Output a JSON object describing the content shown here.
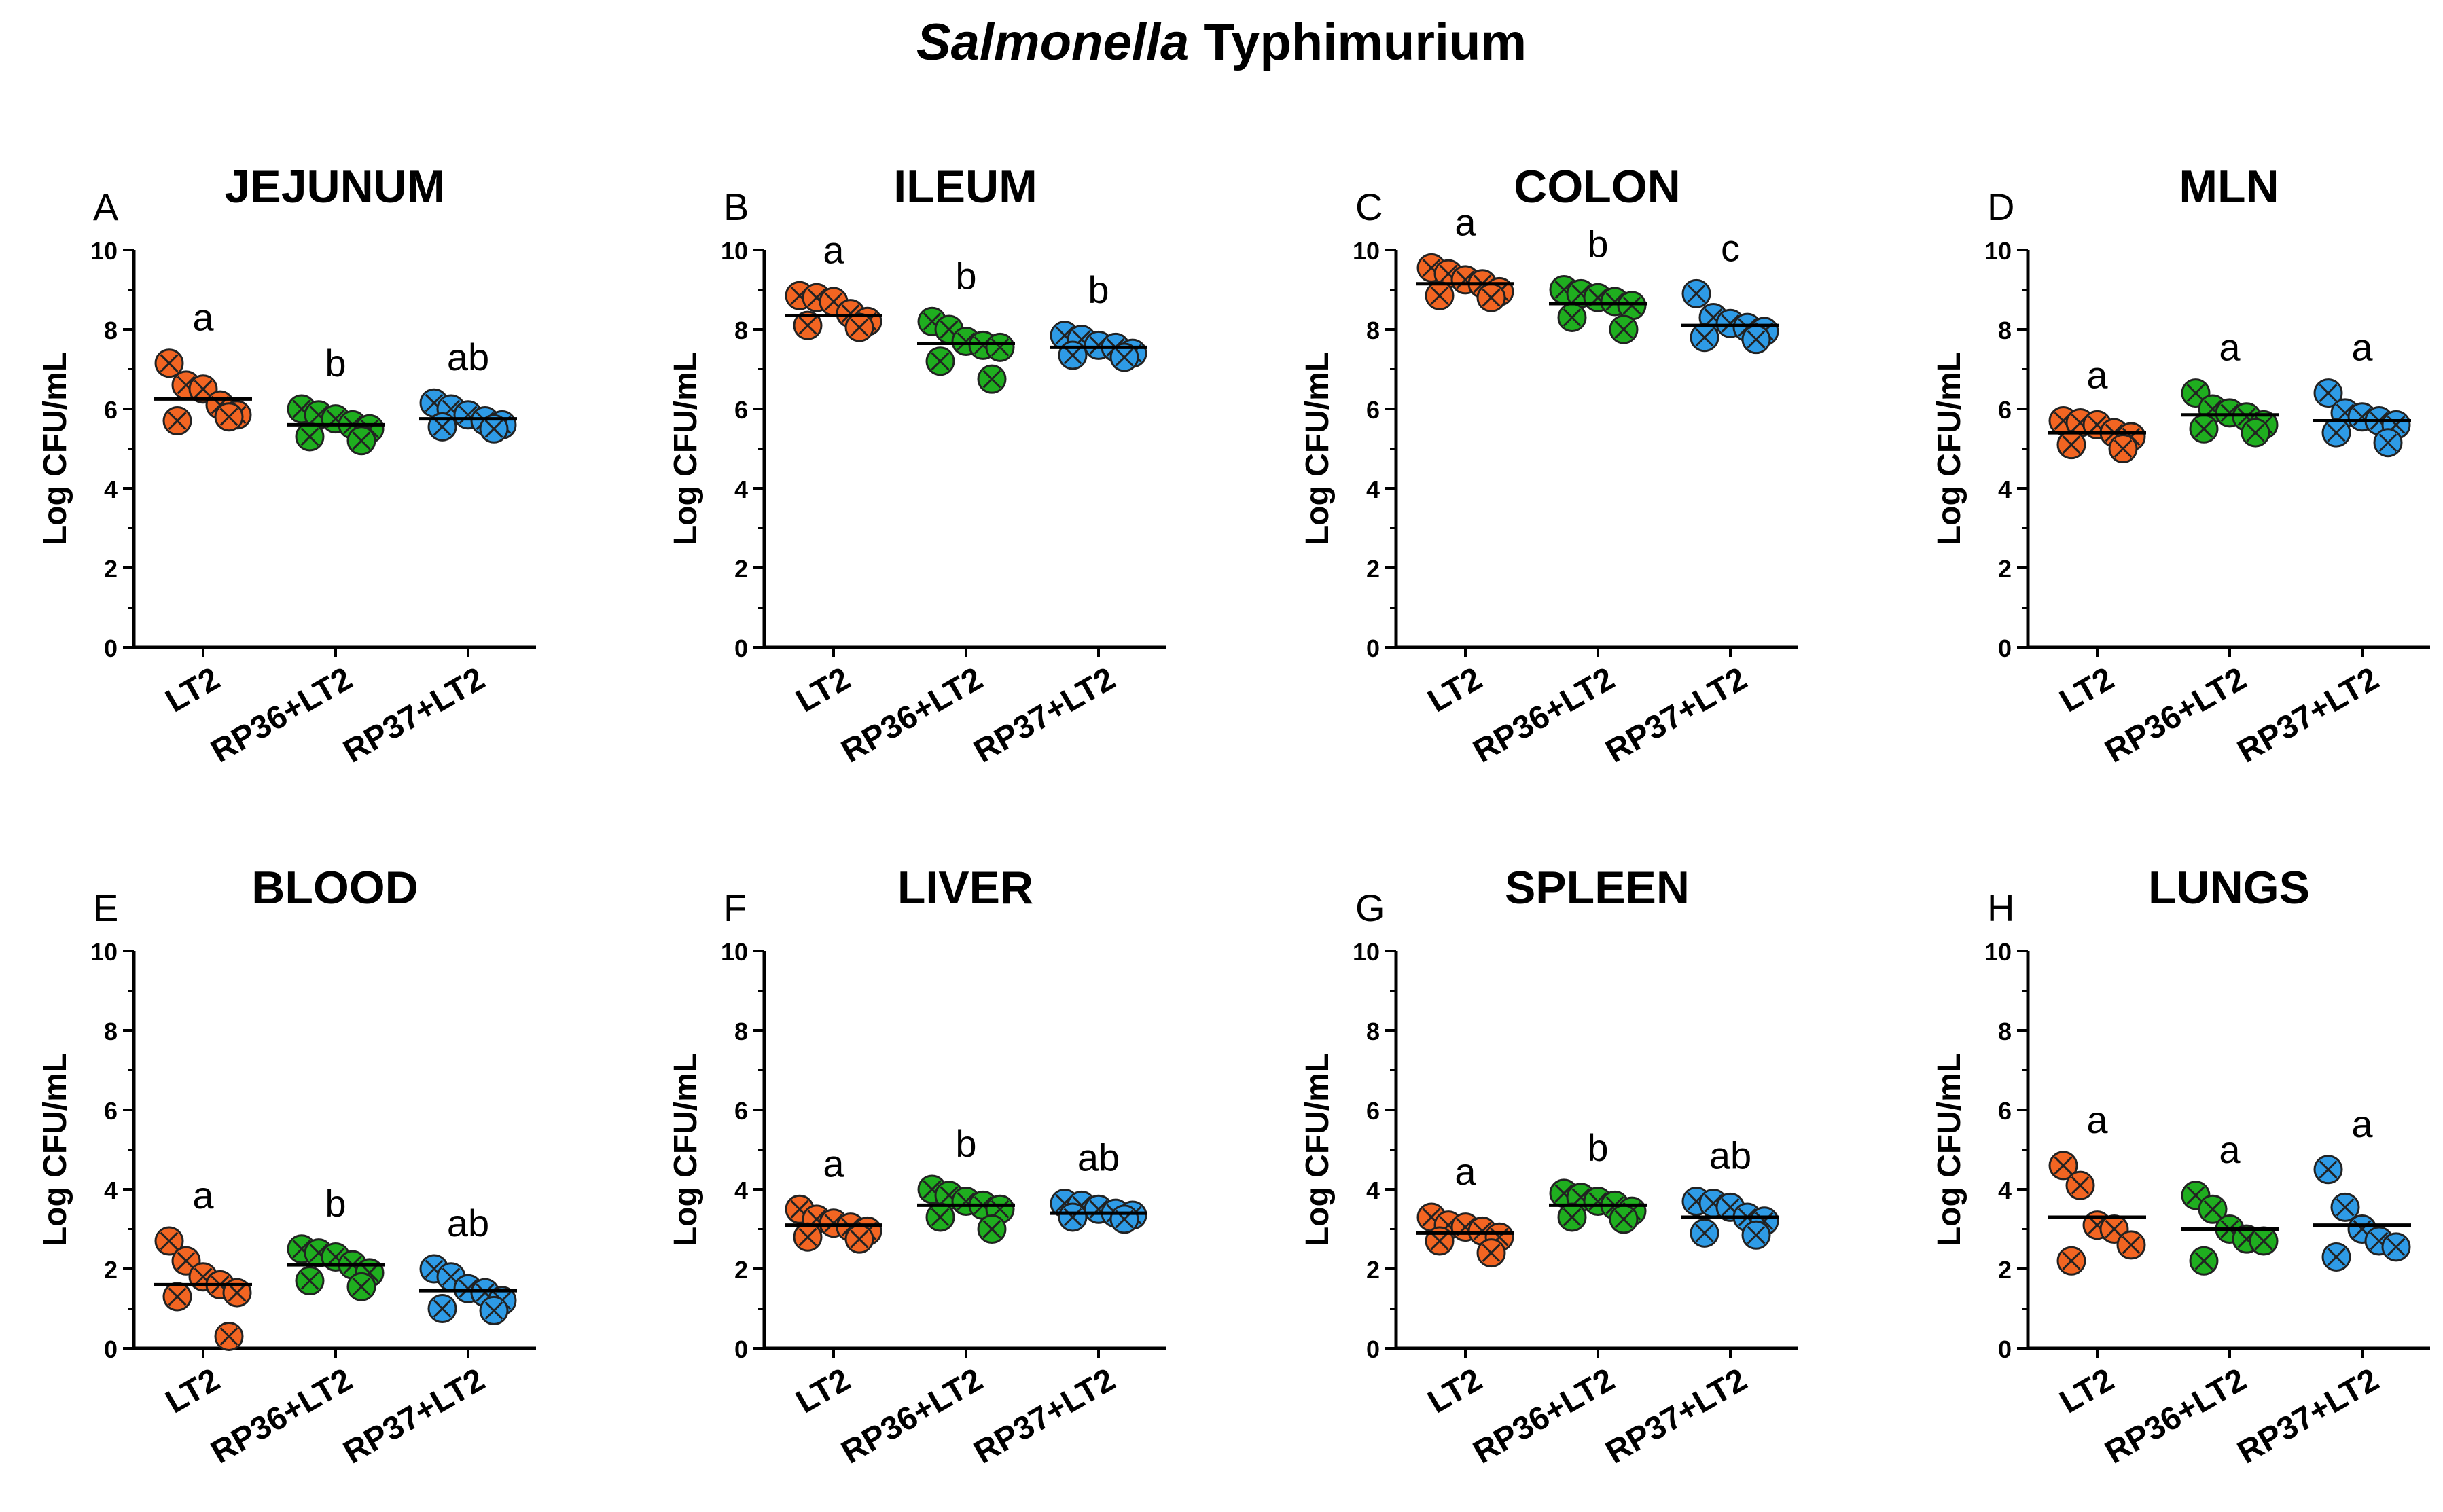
{
  "figure": {
    "title_italic": "Salmonella",
    "title_rest": " Typhimurium"
  },
  "colors": {
    "LT2": "#F26522",
    "RP36+LT2": "#1FAE1F",
    "RP37+LT2": "#2E9BE6",
    "axis": "#000000"
  },
  "chart_data": [
    {
      "type": "scatter",
      "panel": "A",
      "title": "JEJUNUM",
      "ylabel": "Log CFU/mL",
      "ylim": [
        0,
        10
      ],
      "yticks": [
        "0",
        "2",
        "4",
        "6",
        "8",
        "10"
      ],
      "categories": [
        "LT2",
        "RP36+LT2",
        "RP37+LT2"
      ],
      "groups": [
        {
          "name": "LT2",
          "values": [
            7.15,
            6.6,
            6.5,
            6.1,
            5.85,
            5.7,
            5.8
          ],
          "mean": 6.25,
          "letter": "a"
        },
        {
          "name": "RP36+LT2",
          "values": [
            6.0,
            5.85,
            5.75,
            5.6,
            5.5,
            5.3,
            5.2
          ],
          "mean": 5.6,
          "letter": "b"
        },
        {
          "name": "RP37+LT2",
          "values": [
            6.15,
            6.0,
            5.85,
            5.7,
            5.6,
            5.55,
            5.5
          ],
          "mean": 5.75,
          "letter": "ab"
        }
      ]
    },
    {
      "type": "scatter",
      "panel": "B",
      "title": "ILEUM",
      "ylabel": "Log CFU/mL",
      "ylim": [
        0,
        10
      ],
      "yticks": [
        "0",
        "2",
        "4",
        "6",
        "8",
        "10"
      ],
      "categories": [
        "LT2",
        "RP36+LT2",
        "RP37+LT2"
      ],
      "groups": [
        {
          "name": "LT2",
          "values": [
            8.85,
            8.8,
            8.7,
            8.4,
            8.2,
            8.1,
            8.05
          ],
          "mean": 8.35,
          "letter": "a"
        },
        {
          "name": "RP36+LT2",
          "values": [
            8.2,
            8.0,
            7.7,
            7.6,
            7.55,
            7.2,
            6.75
          ],
          "mean": 7.65,
          "letter": "b"
        },
        {
          "name": "RP37+LT2",
          "values": [
            7.85,
            7.75,
            7.6,
            7.55,
            7.4,
            7.35,
            7.3
          ],
          "mean": 7.55,
          "letter": "b"
        }
      ]
    },
    {
      "type": "scatter",
      "panel": "C",
      "title": "COLON",
      "ylabel": "Log CFU/mL",
      "ylim": [
        0,
        10
      ],
      "yticks": [
        "0",
        "2",
        "4",
        "6",
        "8",
        "10"
      ],
      "categories": [
        "LT2",
        "RP36+LT2",
        "RP37+LT2"
      ],
      "groups": [
        {
          "name": "LT2",
          "values": [
            9.55,
            9.4,
            9.25,
            9.15,
            8.95,
            8.85,
            8.8
          ],
          "mean": 9.15,
          "letter": "a"
        },
        {
          "name": "RP36+LT2",
          "values": [
            9.0,
            8.9,
            8.8,
            8.7,
            8.6,
            8.3,
            8.0
          ],
          "mean": 8.65,
          "letter": "b"
        },
        {
          "name": "RP37+LT2",
          "values": [
            8.9,
            8.3,
            8.15,
            8.05,
            7.95,
            7.8,
            7.75
          ],
          "mean": 8.1,
          "letter": "c"
        }
      ]
    },
    {
      "type": "scatter",
      "panel": "D",
      "title": "MLN",
      "ylabel": "Log CFU/mL",
      "ylim": [
        0,
        10
      ],
      "yticks": [
        "0",
        "2",
        "4",
        "6",
        "8",
        "10"
      ],
      "categories": [
        "LT2",
        "RP36+LT2",
        "RP37+LT2"
      ],
      "groups": [
        {
          "name": "LT2",
          "values": [
            5.7,
            5.65,
            5.6,
            5.4,
            5.3,
            5.1,
            5.0
          ],
          "mean": 5.4,
          "letter": "a"
        },
        {
          "name": "RP36+LT2",
          "values": [
            6.4,
            6.0,
            5.9,
            5.8,
            5.6,
            5.5,
            5.4
          ],
          "mean": 5.85,
          "letter": "a"
        },
        {
          "name": "RP37+LT2",
          "values": [
            6.4,
            5.9,
            5.8,
            5.7,
            5.6,
            5.4,
            5.15
          ],
          "mean": 5.7,
          "letter": "a"
        }
      ]
    },
    {
      "type": "scatter",
      "panel": "E",
      "title": "BLOOD",
      "ylabel": "Log CFU/mL",
      "ylim": [
        0,
        10
      ],
      "yticks": [
        "0",
        "2",
        "4",
        "6",
        "8",
        "10"
      ],
      "categories": [
        "LT2",
        "RP36+LT2",
        "RP37+LT2"
      ],
      "groups": [
        {
          "name": "LT2",
          "values": [
            2.7,
            2.2,
            1.8,
            1.6,
            1.4,
            1.3,
            0.3
          ],
          "mean": 1.6,
          "letter": "a"
        },
        {
          "name": "RP36+LT2",
          "values": [
            2.5,
            2.4,
            2.3,
            2.1,
            1.9,
            1.7,
            1.55
          ],
          "mean": 2.1,
          "letter": "b"
        },
        {
          "name": "RP37+LT2",
          "values": [
            2.0,
            1.8,
            1.5,
            1.4,
            1.2,
            1.0,
            0.95
          ],
          "mean": 1.45,
          "letter": "ab"
        }
      ]
    },
    {
      "type": "scatter",
      "panel": "F",
      "title": "LIVER",
      "ylabel": "Log CFU/mL",
      "ylim": [
        0,
        10
      ],
      "yticks": [
        "0",
        "2",
        "4",
        "6",
        "8",
        "10"
      ],
      "categories": [
        "LT2",
        "RP36+LT2",
        "RP37+LT2"
      ],
      "groups": [
        {
          "name": "LT2",
          "values": [
            3.5,
            3.25,
            3.15,
            3.05,
            2.95,
            2.8,
            2.75
          ],
          "mean": 3.1,
          "letter": "a"
        },
        {
          "name": "RP36+LT2",
          "values": [
            4.0,
            3.85,
            3.7,
            3.6,
            3.5,
            3.3,
            3.0
          ],
          "mean": 3.6,
          "letter": "b"
        },
        {
          "name": "RP37+LT2",
          "values": [
            3.65,
            3.6,
            3.5,
            3.4,
            3.35,
            3.3,
            3.25
          ],
          "mean": 3.4,
          "letter": "ab"
        }
      ]
    },
    {
      "type": "scatter",
      "panel": "G",
      "title": "SPLEEN",
      "ylabel": "Log CFU/mL",
      "ylim": [
        0,
        10
      ],
      "yticks": [
        "0",
        "2",
        "4",
        "6",
        "8",
        "10"
      ],
      "categories": [
        "LT2",
        "RP36+LT2",
        "RP37+LT2"
      ],
      "groups": [
        {
          "name": "LT2",
          "values": [
            3.3,
            3.1,
            3.05,
            2.95,
            2.8,
            2.7,
            2.4
          ],
          "mean": 2.9,
          "letter": "a"
        },
        {
          "name": "RP36+LT2",
          "values": [
            3.9,
            3.8,
            3.7,
            3.6,
            3.45,
            3.3,
            3.25
          ],
          "mean": 3.6,
          "letter": "b"
        },
        {
          "name": "RP37+LT2",
          "values": [
            3.7,
            3.65,
            3.55,
            3.3,
            3.2,
            2.9,
            2.85
          ],
          "mean": 3.3,
          "letter": "ab"
        }
      ]
    },
    {
      "type": "scatter",
      "panel": "H",
      "title": "LUNGS",
      "ylabel": "Log CFU/mL",
      "ylim": [
        0,
        10
      ],
      "yticks": [
        "0",
        "2",
        "4",
        "6",
        "8",
        "10"
      ],
      "categories": [
        "LT2",
        "RP36+LT2",
        "RP37+LT2"
      ],
      "groups": [
        {
          "name": "LT2",
          "values": [
            4.6,
            4.1,
            3.1,
            3.0,
            2.6,
            2.2
          ],
          "mean": 3.3,
          "letter": "a"
        },
        {
          "name": "RP36+LT2",
          "values": [
            3.85,
            3.5,
            3.0,
            2.75,
            2.7,
            2.2
          ],
          "mean": 3.0,
          "letter": "a"
        },
        {
          "name": "RP37+LT2",
          "values": [
            4.5,
            3.55,
            3.0,
            2.7,
            2.55,
            2.3
          ],
          "mean": 3.1,
          "letter": "a"
        }
      ]
    }
  ]
}
